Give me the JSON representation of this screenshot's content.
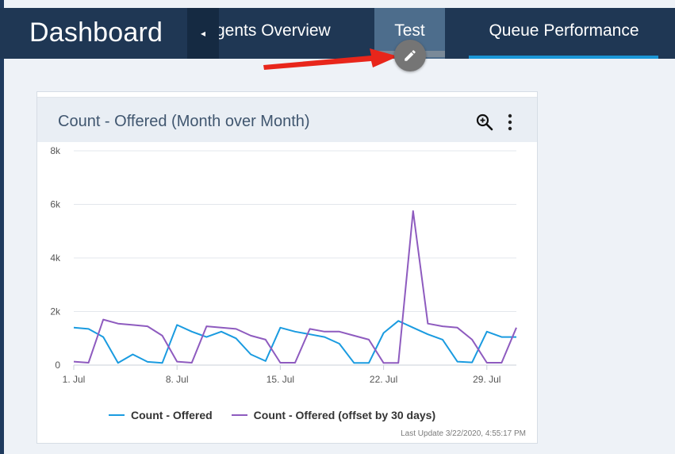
{
  "header": {
    "title": "Dashboard",
    "tabs": [
      {
        "label": "Agents Overview",
        "visible_label": "gents Overview"
      },
      {
        "label": "Test"
      },
      {
        "label": "Queue Performance"
      }
    ],
    "scroll_left_glyph": "◂",
    "active_tab": "Queue Performance"
  },
  "widget": {
    "title": "Count - Offered (Month over Month)",
    "footer": "Last Update 3/22/2020, 4:55:17 PM",
    "icons": [
      "zoom-in-icon",
      "more-vertical-icon"
    ]
  },
  "chart_data": {
    "type": "line",
    "title": "",
    "xlabel": "",
    "ylabel": "",
    "ylim": [
      0,
      8000
    ],
    "yticks": [
      "0",
      "2k",
      "4k",
      "6k",
      "8k"
    ],
    "xticks": [
      {
        "label": "1. Jul",
        "day": 1
      },
      {
        "label": "8. Jul",
        "day": 8
      },
      {
        "label": "15. Jul",
        "day": 15
      },
      {
        "label": "22. Jul",
        "day": 22
      },
      {
        "label": "29. Jul",
        "day": 29
      }
    ],
    "x_days": [
      1,
      2,
      3,
      4,
      5,
      6,
      7,
      8,
      9,
      10,
      11,
      12,
      13,
      14,
      15,
      16,
      17,
      18,
      19,
      20,
      21,
      22,
      23,
      24,
      25,
      26,
      27,
      28,
      29,
      30,
      31
    ],
    "grid": true,
    "legend_placement": "bottom",
    "series": [
      {
        "name": "Count - Offered",
        "color": "#1a9be0",
        "values": [
          1400,
          1350,
          1050,
          80,
          400,
          120,
          80,
          1500,
          1250,
          1050,
          1250,
          1000,
          400,
          150,
          1400,
          1250,
          1150,
          1050,
          800,
          80,
          80,
          1200,
          1650,
          1400,
          1150,
          950,
          130,
          100,
          1250,
          1050,
          1050
        ]
      },
      {
        "name": "Count - Offered (offset by 30 days)",
        "color": "#8e5bbf",
        "values": [
          130,
          90,
          1700,
          1550,
          1500,
          1450,
          1100,
          130,
          90,
          1450,
          1400,
          1350,
          1100,
          950,
          90,
          90,
          1350,
          1250,
          1250,
          1100,
          950,
          80,
          80,
          5750,
          1550,
          1450,
          1400,
          950,
          90,
          90,
          1400
        ]
      }
    ]
  }
}
